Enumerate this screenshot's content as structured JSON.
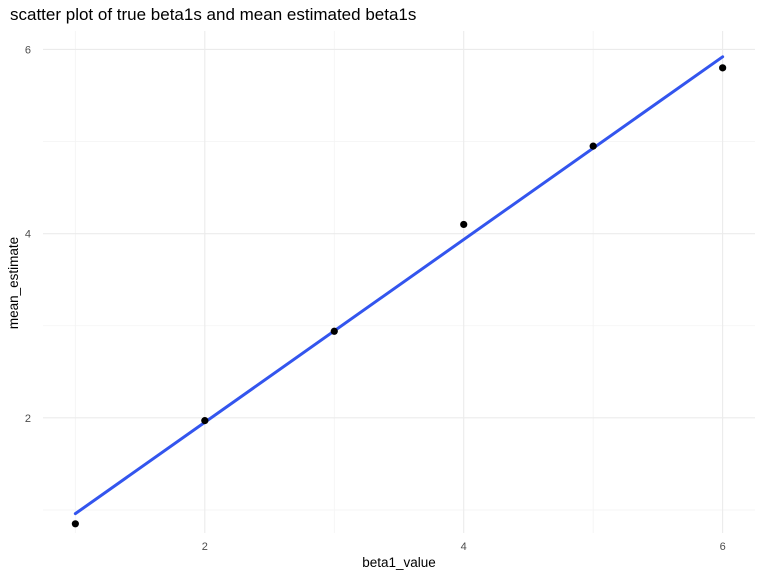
{
  "chart_data": {
    "type": "scatter",
    "title": "scatter plot of true beta1s and mean estimated beta1s",
    "xlabel": "beta1_value",
    "ylabel": "mean_estimate",
    "xlim": [
      0.75,
      6.25
    ],
    "ylim": [
      0.75,
      6.2
    ],
    "x_ticks": [
      2,
      4,
      6
    ],
    "y_ticks": [
      2,
      4,
      6
    ],
    "x_minor_ticks": [
      1,
      3,
      5
    ],
    "y_minor_ticks": [
      1,
      3,
      5
    ],
    "grid": true,
    "points": [
      {
        "x": 1,
        "y": 0.85
      },
      {
        "x": 2,
        "y": 1.97
      },
      {
        "x": 3,
        "y": 2.94
      },
      {
        "x": 4,
        "y": 4.1
      },
      {
        "x": 5,
        "y": 4.95
      },
      {
        "x": 6,
        "y": 5.8
      }
    ],
    "trend_line": {
      "x": [
        1,
        6
      ],
      "y": [
        0.96,
        5.92
      ],
      "color": "#3355ee"
    },
    "point_color": "#000000"
  }
}
